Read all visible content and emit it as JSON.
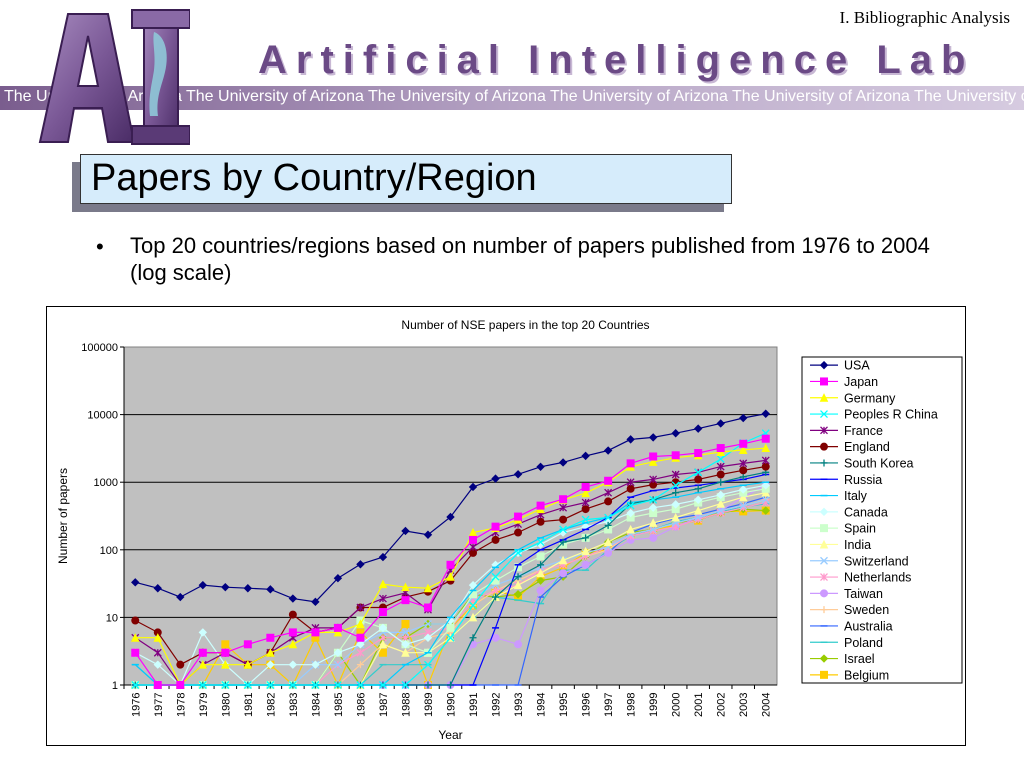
{
  "header": {
    "section_label": "I. Bibliographic Analysis",
    "logo_letters": "AI",
    "lab_name": "Artificial Intelligence Lab",
    "university_strip": "The University of Arizona  The University of Arizona  The University of Arizona  The University of Arizona  The University of Arizona  The University of Arizona  The University"
  },
  "slide": {
    "title": "Papers by Country/Region",
    "bullet_marker": "•",
    "bullet_text": "Top 20 countries/regions based on number of papers published from 1976 to 2004 (log scale)"
  },
  "colors": {
    "plot_background": "#c0c0c0",
    "title_box": "#d6ecfb",
    "logo_purple": "#6b4a86"
  },
  "chart_data": {
    "type": "line",
    "title": "Number of NSE papers in the top 20 Countries",
    "xlabel": "Year",
    "ylabel": "Number of papers",
    "yscale": "log",
    "ylim": [
      1,
      100000
    ],
    "yticks": [
      "1",
      "10",
      "100",
      "1000",
      "10000",
      "100000"
    ],
    "grid": "horizontal",
    "legend_position": "right",
    "x": [
      "1976",
      "1977",
      "1978",
      "1979",
      "1980",
      "1981",
      "1982",
      "1983",
      "1984",
      "1985",
      "1986",
      "1987",
      "1988",
      "1989",
      "1990",
      "1991",
      "1992",
      "1993",
      "1994",
      "1995",
      "1996",
      "1997",
      "1998",
      "1999",
      "2000",
      "2001",
      "2002",
      "2003",
      "2004"
    ],
    "series": [
      {
        "name": "USA",
        "color": "#000080",
        "marker": "diamond",
        "values": [
          33,
          27,
          20,
          30,
          28,
          27,
          26,
          19,
          17,
          38,
          61,
          78,
          190,
          167,
          306,
          850,
          1130,
          1310,
          1690,
          1960,
          2450,
          2940,
          4300,
          4600,
          5300,
          6200,
          7400,
          8900,
          10300
        ]
      },
      {
        "name": "Japan",
        "color": "#ff00ff",
        "marker": "square",
        "values": [
          3,
          1,
          1,
          3,
          3,
          4,
          5,
          6,
          6,
          7,
          5,
          12,
          18,
          14,
          60,
          140,
          220,
          310,
          450,
          560,
          850,
          1050,
          1900,
          2400,
          2500,
          2700,
          3200,
          3700,
          4400
        ]
      },
      {
        "name": "Germany",
        "color": "#ffff00",
        "marker": "triangle",
        "values": [
          5,
          5,
          1,
          2,
          2,
          2,
          3,
          4,
          6,
          6,
          8,
          31,
          28,
          27,
          40,
          180,
          210,
          280,
          400,
          550,
          690,
          1000,
          1700,
          2000,
          2300,
          2500,
          2800,
          3000,
          3200
        ]
      },
      {
        "name": "Peoples R China",
        "color": "#00ffff",
        "marker": "x",
        "values": [
          1,
          1,
          1,
          1,
          1,
          1,
          1,
          1,
          1,
          1,
          1,
          1,
          1,
          2,
          5,
          15,
          40,
          90,
          130,
          200,
          280,
          300,
          450,
          550,
          900,
          1400,
          2200,
          3800,
          5300
        ]
      },
      {
        "name": "France",
        "color": "#800080",
        "marker": "star",
        "values": [
          5,
          3,
          1,
          2,
          3,
          2,
          3,
          5,
          7,
          7,
          14,
          19,
          23,
          13,
          50,
          110,
          180,
          240,
          330,
          420,
          500,
          700,
          1000,
          1100,
          1300,
          1400,
          1700,
          1900,
          2100
        ]
      },
      {
        "name": "England",
        "color": "#800000",
        "marker": "circle",
        "values": [
          9,
          6,
          2,
          3,
          3,
          2,
          3,
          11,
          6,
          7,
          14,
          14,
          20,
          24,
          35,
          90,
          140,
          180,
          260,
          280,
          400,
          520,
          800,
          920,
          1000,
          1100,
          1300,
          1500,
          1700
        ]
      },
      {
        "name": "South Korea",
        "color": "#008080",
        "marker": "plus",
        "values": [
          1,
          1,
          1,
          1,
          1,
          1,
          1,
          1,
          1,
          1,
          1,
          1,
          1,
          1,
          1,
          5,
          20,
          40,
          60,
          130,
          150,
          230,
          480,
          550,
          700,
          800,
          1000,
          1200,
          1400
        ]
      },
      {
        "name": "Russia",
        "color": "#0000ff",
        "marker": "dash",
        "values": [
          1,
          1,
          1,
          1,
          1,
          1,
          1,
          1,
          1,
          1,
          1,
          1,
          1,
          1,
          1,
          1,
          7,
          60,
          100,
          140,
          200,
          300,
          600,
          750,
          820,
          900,
          1000,
          1100,
          1300
        ]
      },
      {
        "name": "Italy",
        "color": "#00ccff",
        "marker": "dash",
        "values": [
          2,
          1,
          1,
          1,
          1,
          1,
          1,
          1,
          1,
          1,
          1,
          1,
          2,
          3,
          10,
          25,
          55,
          100,
          150,
          200,
          250,
          300,
          500,
          550,
          600,
          700,
          800,
          900,
          1000
        ]
      },
      {
        "name": "Canada",
        "color": "#ccffff",
        "marker": "diamond",
        "values": [
          3,
          2,
          1,
          6,
          2,
          1,
          2,
          2,
          2,
          3,
          4,
          7,
          4,
          5,
          9,
          30,
          60,
          90,
          120,
          180,
          220,
          260,
          350,
          420,
          470,
          550,
          650,
          780,
          900
        ]
      },
      {
        "name": "Spain",
        "color": "#ccffcc",
        "marker": "square",
        "values": [
          1,
          1,
          1,
          1,
          1,
          1,
          1,
          1,
          1,
          3,
          9,
          7,
          4,
          3,
          7,
          22,
          35,
          55,
          80,
          120,
          150,
          200,
          300,
          350,
          400,
          500,
          600,
          700,
          800
        ]
      },
      {
        "name": "India",
        "color": "#ffff99",
        "marker": "triangle",
        "values": [
          1,
          1,
          1,
          1,
          1,
          1,
          1,
          1,
          1,
          1,
          1,
          4,
          3,
          3,
          5,
          10,
          20,
          30,
          45,
          70,
          95,
          130,
          200,
          250,
          300,
          380,
          480,
          600,
          700
        ]
      },
      {
        "name": "Switzerland",
        "color": "#99ccff",
        "marker": "x",
        "values": [
          1,
          1,
          1,
          1,
          1,
          1,
          1,
          1,
          2,
          2,
          4,
          6,
          6,
          8,
          8,
          20,
          30,
          40,
          55,
          70,
          90,
          110,
          170,
          200,
          250,
          300,
          380,
          450,
          550
        ]
      },
      {
        "name": "Netherlands",
        "color": "#ff99cc",
        "marker": "star",
        "values": [
          1,
          1,
          1,
          1,
          1,
          1,
          1,
          1,
          1,
          2,
          3,
          5,
          5,
          6,
          7,
          18,
          25,
          30,
          50,
          60,
          80,
          110,
          160,
          190,
          220,
          280,
          350,
          420,
          500
        ]
      },
      {
        "name": "Taiwan",
        "color": "#cc99ff",
        "marker": "circle",
        "values": [
          1,
          1,
          1,
          1,
          1,
          1,
          1,
          1,
          1,
          1,
          1,
          1,
          1,
          1,
          1,
          4,
          5,
          4,
          25,
          45,
          60,
          90,
          140,
          150,
          220,
          300,
          380,
          600,
          900
        ]
      },
      {
        "name": "Sweden",
        "color": "#ffcc99",
        "marker": "plus",
        "values": [
          1,
          1,
          1,
          1,
          1,
          1,
          1,
          1,
          1,
          1,
          2,
          4,
          3,
          5,
          6,
          15,
          25,
          35,
          50,
          60,
          80,
          100,
          170,
          200,
          250,
          300,
          380,
          450,
          550
        ]
      },
      {
        "name": "Australia",
        "color": "#3366ff",
        "marker": "dash",
        "values": [
          1,
          1,
          1,
          1,
          1,
          1,
          1,
          1,
          1,
          1,
          1,
          1,
          1,
          1,
          1,
          1,
          1,
          1,
          20,
          40,
          60,
          90,
          180,
          240,
          290,
          330,
          400,
          480,
          600
        ]
      },
      {
        "name": "Poland",
        "color": "#33cccc",
        "marker": "dash",
        "values": [
          2,
          1,
          1,
          1,
          1,
          1,
          1,
          1,
          1,
          1,
          1,
          2,
          2,
          2,
          5,
          10,
          20,
          18,
          16,
          50,
          50,
          100,
          160,
          200,
          260,
          300,
          370,
          430,
          480
        ]
      },
      {
        "name": "Israel",
        "color": "#99cc00",
        "marker": "diamond",
        "values": [
          1,
          1,
          1,
          1,
          1,
          1,
          1,
          1,
          1,
          3,
          1,
          5,
          5,
          8,
          8,
          22,
          20,
          22,
          35,
          40,
          80,
          130,
          180,
          200,
          250,
          280,
          350,
          400,
          380
        ]
      },
      {
        "name": "Belgium",
        "color": "#ffcc00",
        "marker": "square",
        "values": [
          1,
          1,
          1,
          1,
          4,
          2,
          2,
          1,
          5,
          1,
          6,
          3,
          8,
          1,
          7,
          15,
          25,
          20,
          40,
          55,
          90,
          100,
          170,
          200,
          230,
          270,
          370,
          370,
          380
        ]
      }
    ]
  }
}
